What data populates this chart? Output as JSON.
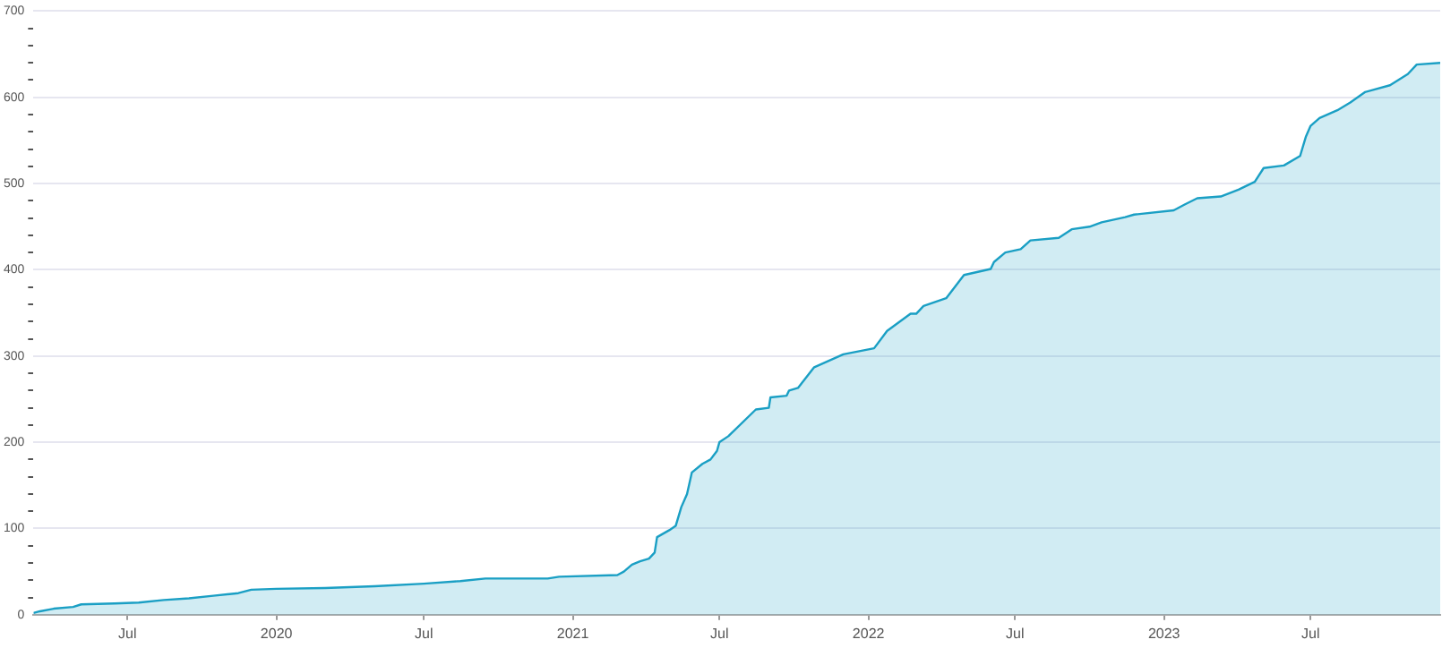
{
  "chart_data": {
    "type": "area",
    "x": [
      "2019-03-07",
      "2019-03-15",
      "2019-04-01",
      "2019-04-25",
      "2019-05-05",
      "2019-06-15",
      "2019-07-15",
      "2019-08-15",
      "2019-09-15",
      "2019-10-15",
      "2019-11-15",
      "2019-12-01",
      "2020-01-01",
      "2020-03-01",
      "2020-05-01",
      "2020-07-01",
      "2020-08-15",
      "2020-09-15",
      "2020-12-01",
      "2020-12-15",
      "2021-02-25",
      "2021-03-05",
      "2021-03-15",
      "2021-03-25",
      "2021-04-05",
      "2021-04-12",
      "2021-04-15",
      "2021-04-30",
      "2021-05-08",
      "2021-05-15",
      "2021-05-22",
      "2021-05-28",
      "2021-06-10",
      "2021-06-20",
      "2021-06-28",
      "2021-07-01",
      "2021-07-12",
      "2021-08-15",
      "2021-08-31",
      "2021-09-02",
      "2021-09-22",
      "2021-09-25",
      "2021-10-06",
      "2021-10-26",
      "2021-12-01",
      "2022-01-08",
      "2022-01-24",
      "2022-02-22",
      "2022-03-01",
      "2022-03-10",
      "2022-04-07",
      "2022-04-29",
      "2022-06-01",
      "2022-06-05",
      "2022-06-19",
      "2022-07-08",
      "2022-07-20",
      "2022-08-24",
      "2022-09-09",
      "2022-10-01",
      "2022-10-16",
      "2022-11-14",
      "2022-11-25",
      "2023-01-13",
      "2023-01-27",
      "2023-02-11",
      "2023-03-12",
      "2023-04-03",
      "2023-04-23",
      "2023-05-04",
      "2023-05-29",
      "2023-06-18",
      "2023-06-25",
      "2023-07-01",
      "2023-07-12",
      "2023-08-03",
      "2023-08-19",
      "2023-09-06",
      "2023-10-07",
      "2023-10-29",
      "2023-11-09",
      "2023-12-08"
    ],
    "series": [
      {
        "color": "#1a9fc4",
        "values": [
          2,
          4,
          7,
          9,
          12,
          13,
          14,
          17,
          19,
          22,
          25,
          29,
          30,
          31,
          33,
          36,
          39,
          42,
          42,
          44,
          46,
          50,
          58,
          62,
          65,
          72,
          90,
          98,
          103,
          125,
          140,
          165,
          175,
          180,
          190,
          200,
          207,
          238,
          240,
          252,
          254,
          260,
          263,
          287,
          302,
          309,
          329,
          349,
          349,
          358,
          367,
          394,
          401,
          409,
          420,
          424,
          434,
          437,
          447,
          450,
          455,
          461,
          464,
          469,
          476,
          483,
          485,
          493,
          502,
          518,
          521,
          532,
          554,
          567,
          576,
          585,
          594,
          606,
          614,
          627,
          638,
          640
        ]
      }
    ],
    "xlim": [
      "2019-03-07",
      "2023-12-08"
    ],
    "xticks": [
      {
        "value": "2019-07-01",
        "label": "Jul"
      },
      {
        "value": "2020-01-01",
        "label": "2020"
      },
      {
        "value": "2020-07-01",
        "label": "Jul"
      },
      {
        "value": "2021-01-01",
        "label": "2021"
      },
      {
        "value": "2021-07-01",
        "label": "Jul"
      },
      {
        "value": "2022-01-01",
        "label": "2022"
      },
      {
        "value": "2022-07-01",
        "label": "Jul"
      },
      {
        "value": "2023-01-01",
        "label": "2023"
      },
      {
        "value": "2023-07-01",
        "label": "Jul"
      }
    ],
    "ylim": [
      0,
      700
    ],
    "yticks": [
      0,
      {
        "value": 20,
        "label": null
      },
      {
        "value": 40,
        "label": null
      },
      {
        "value": 60,
        "label": null
      },
      {
        "value": 80,
        "label": null
      },
      100,
      {
        "value": 120,
        "label": null
      },
      {
        "value": 140,
        "label": null
      },
      {
        "value": 160,
        "label": null
      },
      {
        "value": 180,
        "label": null
      },
      200,
      {
        "value": 220,
        "label": null
      },
      {
        "value": 240,
        "label": null
      },
      {
        "value": 260,
        "label": null
      },
      {
        "value": 280,
        "label": null
      },
      300,
      {
        "value": 320,
        "label": null
      },
      {
        "value": 340,
        "label": null
      },
      {
        "value": 360,
        "label": null
      },
      {
        "value": 380,
        "label": null
      },
      400,
      {
        "value": 420,
        "label": null
      },
      {
        "value": 440,
        "label": null
      },
      {
        "value": 460,
        "label": null
      },
      {
        "value": 480,
        "label": null
      },
      500,
      {
        "value": 520,
        "label": null
      },
      {
        "value": 540,
        "label": null
      },
      {
        "value": 560,
        "label": null
      },
      {
        "value": 580,
        "label": null
      },
      600,
      {
        "value": 620,
        "label": null
      },
      {
        "value": 640,
        "label": null
      },
      {
        "value": 660,
        "label": null
      },
      {
        "value": 680,
        "label": null
      },
      700
    ],
    "grid": "y",
    "legend": false
  }
}
